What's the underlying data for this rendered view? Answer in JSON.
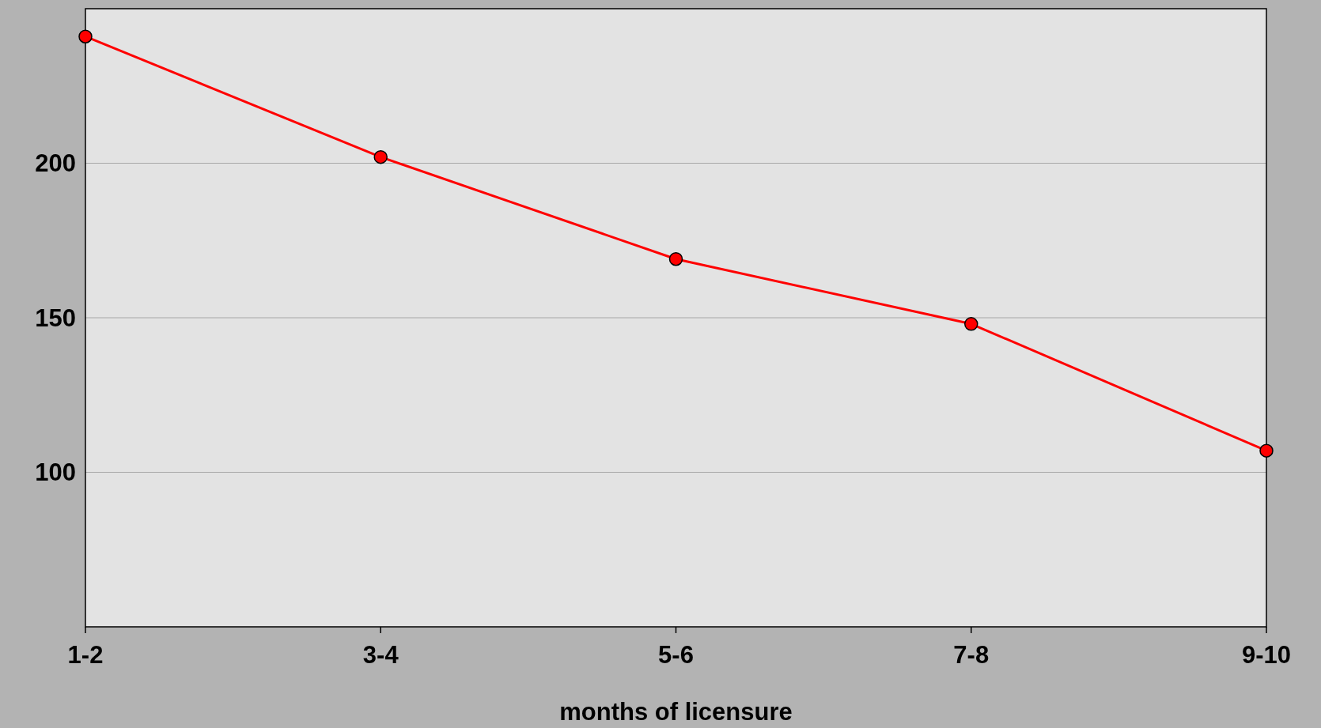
{
  "chart_data": {
    "type": "line",
    "xlabel": "months of licensure",
    "categories": [
      "1-2",
      "3-4",
      "5-6",
      "7-8",
      "9-10"
    ],
    "series": [
      {
        "color": "#ff0000",
        "values": [
          241,
          202,
          169,
          148,
          107
        ]
      }
    ],
    "ylim": [
      50,
      250
    ],
    "yticks": [
      100,
      150,
      200
    ],
    "grid": "y",
    "marker": "circle",
    "line_style": "solid"
  }
}
